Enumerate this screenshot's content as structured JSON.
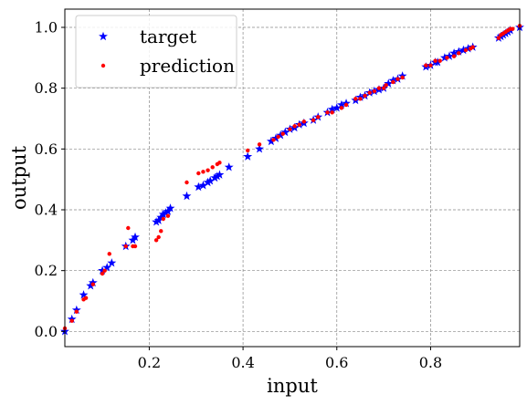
{
  "chart_data": {
    "type": "scatter",
    "xlabel": "input",
    "ylabel": "output",
    "xlim": [
      0.02,
      0.99
    ],
    "ylim": [
      -0.05,
      1.06
    ],
    "xticks": [
      "0.2",
      "0.4",
      "0.6",
      "0.8"
    ],
    "xtick_values": [
      0.2,
      0.4,
      0.6,
      0.8
    ],
    "yticks": [
      "0.0",
      "0.2",
      "0.4",
      "0.6",
      "0.8",
      "1.0"
    ],
    "ytick_values": [
      0.0,
      0.2,
      0.4,
      0.6,
      0.8,
      1.0
    ],
    "grid": true,
    "legend_position": "top-left",
    "series": [
      {
        "name": "target",
        "marker": "star",
        "color": "#0000ff",
        "x": [
          0.02,
          0.035,
          0.045,
          0.06,
          0.075,
          0.08,
          0.1,
          0.11,
          0.12,
          0.15,
          0.165,
          0.17,
          0.215,
          0.22,
          0.225,
          0.23,
          0.235,
          0.24,
          0.245,
          0.28,
          0.305,
          0.315,
          0.325,
          0.33,
          0.34,
          0.345,
          0.35,
          0.37,
          0.41,
          0.435,
          0.46,
          0.47,
          0.48,
          0.49,
          0.5,
          0.51,
          0.52,
          0.53,
          0.55,
          0.56,
          0.58,
          0.59,
          0.6,
          0.61,
          0.62,
          0.64,
          0.65,
          0.66,
          0.67,
          0.68,
          0.69,
          0.7,
          0.71,
          0.72,
          0.73,
          0.74,
          0.79,
          0.8,
          0.81,
          0.815,
          0.83,
          0.84,
          0.85,
          0.86,
          0.87,
          0.88,
          0.89,
          0.945,
          0.95,
          0.955,
          0.96,
          0.965,
          0.97,
          0.99
        ],
        "y": [
          0.0,
          0.04,
          0.07,
          0.12,
          0.15,
          0.16,
          0.2,
          0.21,
          0.225,
          0.28,
          0.3,
          0.31,
          0.36,
          0.365,
          0.375,
          0.385,
          0.39,
          0.395,
          0.405,
          0.445,
          0.475,
          0.48,
          0.49,
          0.495,
          0.505,
          0.51,
          0.515,
          0.54,
          0.575,
          0.6,
          0.625,
          0.635,
          0.645,
          0.655,
          0.665,
          0.67,
          0.68,
          0.685,
          0.695,
          0.705,
          0.72,
          0.73,
          0.735,
          0.745,
          0.75,
          0.76,
          0.77,
          0.775,
          0.785,
          0.79,
          0.795,
          0.8,
          0.815,
          0.825,
          0.83,
          0.84,
          0.87,
          0.875,
          0.885,
          0.885,
          0.9,
          0.905,
          0.915,
          0.92,
          0.925,
          0.93,
          0.935,
          0.965,
          0.97,
          0.975,
          0.98,
          0.985,
          0.99,
          1.0
        ]
      },
      {
        "name": "prediction",
        "marker": "dot",
        "color": "#ff0000",
        "x": [
          0.02,
          0.035,
          0.045,
          0.06,
          0.065,
          0.08,
          0.1,
          0.105,
          0.115,
          0.15,
          0.155,
          0.165,
          0.17,
          0.215,
          0.22,
          0.225,
          0.23,
          0.24,
          0.28,
          0.305,
          0.315,
          0.325,
          0.335,
          0.345,
          0.35,
          0.41,
          0.435,
          0.465,
          0.475,
          0.485,
          0.5,
          0.51,
          0.52,
          0.53,
          0.55,
          0.56,
          0.58,
          0.59,
          0.61,
          0.62,
          0.64,
          0.65,
          0.66,
          0.67,
          0.68,
          0.69,
          0.7,
          0.705,
          0.72,
          0.73,
          0.74,
          0.79,
          0.8,
          0.81,
          0.82,
          0.835,
          0.85,
          0.86,
          0.875,
          0.885,
          0.89,
          0.945,
          0.95,
          0.955,
          0.96,
          0.965,
          0.97,
          0.975,
          0.99
        ],
        "y": [
          0.01,
          0.035,
          0.065,
          0.105,
          0.11,
          0.155,
          0.19,
          0.2,
          0.255,
          0.28,
          0.34,
          0.28,
          0.28,
          0.3,
          0.31,
          0.33,
          0.37,
          0.38,
          0.49,
          0.52,
          0.525,
          0.53,
          0.54,
          0.55,
          0.555,
          0.595,
          0.615,
          0.63,
          0.64,
          0.65,
          0.665,
          0.675,
          0.68,
          0.69,
          0.695,
          0.705,
          0.72,
          0.72,
          0.735,
          0.745,
          0.765,
          0.765,
          0.775,
          0.785,
          0.79,
          0.8,
          0.8,
          0.81,
          0.82,
          0.83,
          0.835,
          0.875,
          0.875,
          0.89,
          0.89,
          0.9,
          0.905,
          0.915,
          0.925,
          0.93,
          0.935,
          0.965,
          0.975,
          0.98,
          0.985,
          0.99,
          0.995,
          0.995,
          1.005
        ]
      }
    ]
  }
}
